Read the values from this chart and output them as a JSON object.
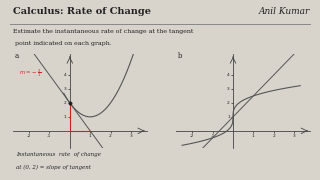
{
  "bg_color": "#d8d4cc",
  "title": "Calculus: Rate of Change",
  "author": "Anil Kumar",
  "instruction_line1": "Estimate the instantaneous rate of change at the tangent",
  "instruction_line2": " point indicated on each graph.",
  "footnote_line1": "Instantaneous  rate  of change",
  "footnote_line2": "at (0, 2) = slope of tangent",
  "label_a": "a",
  "label_b": "b",
  "slope_label": "m = -2/",
  "axis_color": "#444444",
  "curve_color": "#555555",
  "red_color": "#cc2222",
  "dot_color": "#222222",
  "text_color": "#222222",
  "line_color": "#888888"
}
